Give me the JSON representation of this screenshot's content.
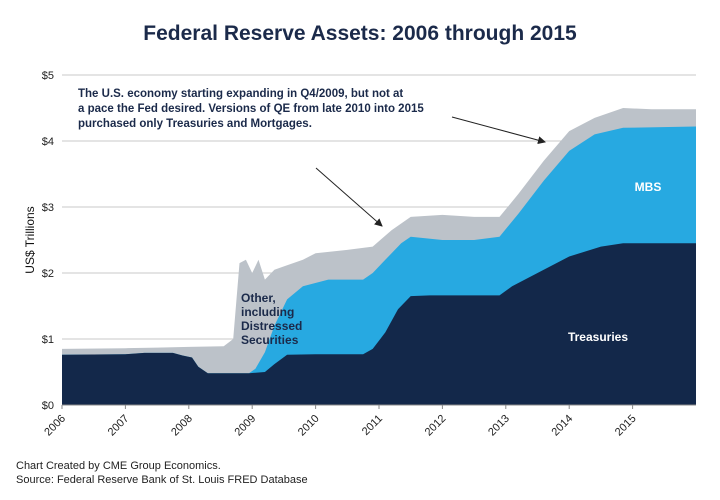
{
  "chart_data": {
    "type": "area",
    "title": "Federal Reserve Assets: 2006 through 2015",
    "xlabel": "",
    "ylabel": "US$ Trillions",
    "xlim": [
      2006,
      2016
    ],
    "ylim": [
      0,
      5
    ],
    "y_ticks": [
      {
        "value": 0,
        "label": "$0"
      },
      {
        "value": 1,
        "label": "$1"
      },
      {
        "value": 2,
        "label": "$2"
      },
      {
        "value": 3,
        "label": "$3"
      },
      {
        "value": 4,
        "label": "$4"
      },
      {
        "value": 5,
        "label": "$5"
      }
    ],
    "x_ticks": [
      {
        "value": 2006,
        "label": "2006"
      },
      {
        "value": 2007,
        "label": "2007"
      },
      {
        "value": 2008,
        "label": "2008"
      },
      {
        "value": 2009,
        "label": "2009"
      },
      {
        "value": 2010,
        "label": "2010"
      },
      {
        "value": 2011,
        "label": "2011"
      },
      {
        "value": 2012,
        "label": "2012"
      },
      {
        "value": 2013,
        "label": "2013"
      },
      {
        "value": 2014,
        "label": "2014"
      },
      {
        "value": 2015,
        "label": "2015"
      }
    ],
    "grid": true,
    "stacked": true,
    "series": [
      {
        "name": "Treasuries",
        "color": "#13284a",
        "points": [
          [
            2006.0,
            0.76
          ],
          [
            2007.0,
            0.77
          ],
          [
            2007.3,
            0.79
          ],
          [
            2007.75,
            0.79
          ],
          [
            2007.9,
            0.75
          ],
          [
            2008.05,
            0.72
          ],
          [
            2008.15,
            0.58
          ],
          [
            2008.3,
            0.48
          ],
          [
            2008.95,
            0.48
          ],
          [
            2009.2,
            0.5
          ],
          [
            2009.35,
            0.62
          ],
          [
            2009.55,
            0.76
          ],
          [
            2010.0,
            0.77
          ],
          [
            2010.75,
            0.77
          ],
          [
            2010.9,
            0.85
          ],
          [
            2011.1,
            1.1
          ],
          [
            2011.3,
            1.45
          ],
          [
            2011.5,
            1.65
          ],
          [
            2011.8,
            1.66
          ],
          [
            2012.5,
            1.66
          ],
          [
            2012.9,
            1.66
          ],
          [
            2013.1,
            1.8
          ],
          [
            2013.5,
            2.0
          ],
          [
            2014.0,
            2.25
          ],
          [
            2014.5,
            2.4
          ],
          [
            2014.85,
            2.45
          ],
          [
            2016.0,
            2.45
          ]
        ]
      },
      {
        "name": "MBS",
        "color": "#27a9e1",
        "points": [
          [
            2006.0,
            0.76
          ],
          [
            2007.0,
            0.77
          ],
          [
            2007.3,
            0.79
          ],
          [
            2007.75,
            0.79
          ],
          [
            2007.9,
            0.75
          ],
          [
            2008.05,
            0.72
          ],
          [
            2008.15,
            0.58
          ],
          [
            2008.3,
            0.48
          ],
          [
            2008.95,
            0.48
          ],
          [
            2009.05,
            0.55
          ],
          [
            2009.2,
            0.8
          ],
          [
            2009.35,
            1.2
          ],
          [
            2009.55,
            1.6
          ],
          [
            2009.8,
            1.8
          ],
          [
            2010.2,
            1.9
          ],
          [
            2010.75,
            1.9
          ],
          [
            2010.9,
            2.0
          ],
          [
            2011.1,
            2.2
          ],
          [
            2011.35,
            2.45
          ],
          [
            2011.5,
            2.55
          ],
          [
            2012.0,
            2.5
          ],
          [
            2012.5,
            2.5
          ],
          [
            2012.9,
            2.55
          ],
          [
            2013.2,
            2.9
          ],
          [
            2013.6,
            3.4
          ],
          [
            2014.0,
            3.85
          ],
          [
            2014.4,
            4.1
          ],
          [
            2014.85,
            4.2
          ],
          [
            2016.0,
            4.22
          ]
        ]
      },
      {
        "name": "Other, including Distressed Securities",
        "color": "#bcc2c9",
        "points": [
          [
            2006.0,
            0.85
          ],
          [
            2007.0,
            0.86
          ],
          [
            2007.5,
            0.87
          ],
          [
            2008.0,
            0.88
          ],
          [
            2008.55,
            0.89
          ],
          [
            2008.7,
            1.0
          ],
          [
            2008.8,
            2.15
          ],
          [
            2008.9,
            2.2
          ],
          [
            2009.0,
            2.0
          ],
          [
            2009.1,
            2.2
          ],
          [
            2009.2,
            1.9
          ],
          [
            2009.35,
            2.05
          ],
          [
            2009.5,
            2.1
          ],
          [
            2009.8,
            2.2
          ],
          [
            2010.0,
            2.3
          ],
          [
            2010.5,
            2.35
          ],
          [
            2010.9,
            2.4
          ],
          [
            2011.2,
            2.65
          ],
          [
            2011.5,
            2.85
          ],
          [
            2012.0,
            2.88
          ],
          [
            2012.5,
            2.85
          ],
          [
            2012.9,
            2.85
          ],
          [
            2013.2,
            3.2
          ],
          [
            2013.6,
            3.7
          ],
          [
            2014.0,
            4.15
          ],
          [
            2014.4,
            4.35
          ],
          [
            2014.85,
            4.5
          ],
          [
            2015.3,
            4.48
          ],
          [
            2016.0,
            4.48
          ]
        ]
      }
    ],
    "annotations": [
      {
        "text": "The U.S. economy starting expanding in Q4/2009, but not at a pace the Fed desired.  Versions of QE from late 2010 into 2015 purchased only Treasuries and Mortgages.",
        "lines": [
          "The U.S. economy starting expanding in Q4/2009, but not at",
          "a pace the Fed desired.  Versions of QE from late 2010 into 2015",
          "purchased only Treasuries and Mortgages."
        ]
      }
    ],
    "area_labels": [
      {
        "series": "MBS",
        "text": "MBS"
      },
      {
        "series": "Treasuries",
        "text": "Treasuries"
      },
      {
        "series": "Other, including Distressed Securities",
        "lines": [
          "Other,",
          "including",
          "Distressed",
          "Securities"
        ]
      }
    ]
  },
  "credits": {
    "created_by": "Chart Created by CME Group Economics.",
    "source": "Source: Federal Reserve Bank of St. Louis FRED Database"
  }
}
